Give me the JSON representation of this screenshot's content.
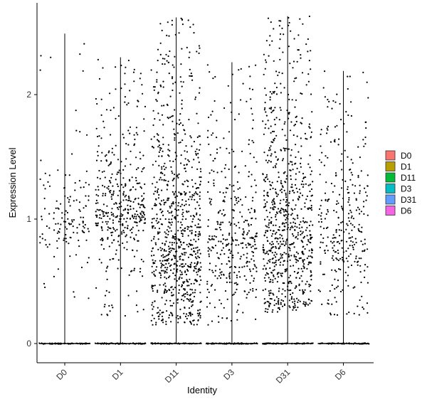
{
  "chart_data": {
    "type": "violin-jitter",
    "xlabel": "Identity",
    "ylabel": "Expression Level",
    "categories": [
      "D0",
      "D1",
      "D11",
      "D3",
      "D31",
      "D6"
    ],
    "yticks": [
      0,
      1,
      2
    ],
    "ylim": [
      -0.08,
      2.7
    ],
    "grid": false,
    "legend": {
      "position": "right",
      "entries": [
        {
          "label": "D0",
          "color": "#F8766D"
        },
        {
          "label": "D1",
          "color": "#B79F00"
        },
        {
          "label": "D11",
          "color": "#00BA38"
        },
        {
          "label": "D3",
          "color": "#00BFC4"
        },
        {
          "label": "D31",
          "color": "#619CFF"
        },
        {
          "label": "D6",
          "color": "#F564E3"
        }
      ]
    },
    "groups": [
      {
        "name": "D0",
        "max": 2.49,
        "n_nonzero": 140,
        "dist": [
          0.25,
          0.9,
          0.35,
          2.5
        ]
      },
      {
        "name": "D1",
        "max": 2.3,
        "n_nonzero": 420,
        "dist": [
          0.2,
          1.0,
          0.45,
          2.3
        ]
      },
      {
        "name": "D11",
        "max": 2.62,
        "n_nonzero": 850,
        "dist": [
          0.15,
          0.6,
          0.8,
          2.62
        ]
      },
      {
        "name": "D3",
        "max": 2.26,
        "n_nonzero": 380,
        "dist": [
          0.15,
          0.7,
          0.6,
          2.26
        ]
      },
      {
        "name": "D31",
        "max": 2.63,
        "n_nonzero": 800,
        "dist": [
          0.25,
          0.7,
          0.8,
          2.63
        ]
      },
      {
        "name": "D6",
        "max": 2.19,
        "n_nonzero": 320,
        "dist": [
          0.2,
          0.8,
          0.55,
          2.19
        ]
      }
    ],
    "point_color": "#000000"
  }
}
